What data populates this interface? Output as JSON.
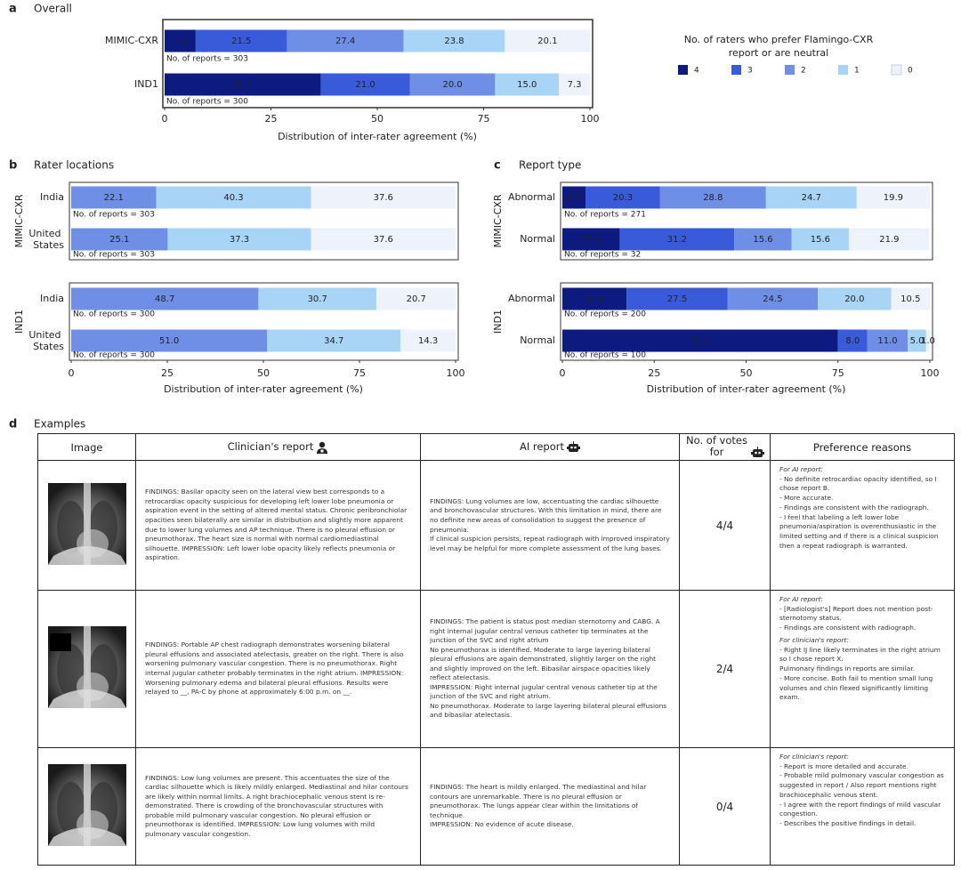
{
  "panels": [
    {
      "letter": "a",
      "title": "Overall"
    },
    {
      "letter": "b",
      "title": "Rater locations"
    },
    {
      "letter": "c",
      "title": "Report type"
    },
    {
      "letter": "d",
      "title": "Examples"
    }
  ],
  "chart_data": [
    {
      "type": "bar",
      "orientation": "horizontal",
      "stacked": true,
      "categories": [
        "MIMIC-CXR",
        "IND1"
      ],
      "notes": [
        "No. of reports = 303",
        "No. of reports = 300"
      ],
      "series": [
        {
          "name": "4",
          "color": "#0d1a80",
          "values": [
            7.3,
            36.7
          ],
          "value_labels": [
            "7.3",
            "36.7"
          ]
        },
        {
          "name": "3",
          "color": "#3a5bd9",
          "values": [
            21.5,
            21.0
          ],
          "value_labels": [
            "21.5",
            "21.0"
          ]
        },
        {
          "name": "2",
          "color": "#6f8fe6",
          "values": [
            27.4,
            20.0
          ],
          "value_labels": [
            "27.4",
            "20.0"
          ]
        },
        {
          "name": "1",
          "color": "#a8d4f5",
          "values": [
            23.8,
            15.0
          ],
          "value_labels": [
            "23.8",
            "15.0"
          ]
        },
        {
          "name": "0",
          "color": "#eef3fb",
          "values": [
            20.1,
            7.3
          ],
          "value_labels": [
            "20.1",
            "7.3"
          ]
        }
      ],
      "legend_title": [
        "No. of raters who prefer Flamingo-CXR",
        "report or are neutral"
      ],
      "legend_position": "right",
      "xlim": [
        0,
        100
      ],
      "xticks": [
        0,
        25,
        50,
        75,
        100
      ],
      "xlabel": "Distribution of inter-rater agreement (%)"
    },
    {
      "type": "bar",
      "orientation": "horizontal",
      "stacked": true,
      "group": "MIMIC-CXR",
      "categories": [
        "India",
        "United States"
      ],
      "notes": [
        "No. of reports = 303",
        "No. of reports = 303"
      ],
      "series": [
        {
          "color": "#6f8fe6",
          "values": [
            22.1,
            25.1
          ],
          "value_labels": [
            "22.1",
            "25.1"
          ]
        },
        {
          "color": "#a8d4f5",
          "values": [
            40.3,
            37.3
          ],
          "value_labels": [
            "40.3",
            "37.3"
          ]
        },
        {
          "color": "#eef3fb",
          "values": [
            37.6,
            37.6
          ],
          "value_labels": [
            "37.6",
            "37.6"
          ]
        }
      ],
      "xlim": [
        0,
        100
      ]
    },
    {
      "type": "bar",
      "orientation": "horizontal",
      "stacked": true,
      "group": "IND1",
      "categories": [
        "India",
        "United States"
      ],
      "notes": [
        "No. of reports = 300",
        "No. of reports = 300"
      ],
      "series": [
        {
          "color": "#6f8fe6",
          "values": [
            48.7,
            51.0
          ],
          "value_labels": [
            "48.7",
            "51.0"
          ]
        },
        {
          "color": "#a8d4f5",
          "values": [
            30.7,
            34.7
          ],
          "value_labels": [
            "30.7",
            "34.7"
          ]
        },
        {
          "color": "#eef3fb",
          "values": [
            20.7,
            14.3
          ],
          "value_labels": [
            "20.7",
            "14.3"
          ]
        }
      ],
      "xlim": [
        0,
        100
      ],
      "xticks": [
        0,
        25,
        50,
        75,
        100
      ],
      "xlabel": "Distribution of inter-rater agreement (%)"
    },
    {
      "type": "bar",
      "orientation": "horizontal",
      "stacked": true,
      "group": "MIMIC-CXR",
      "categories": [
        "Abnormal",
        "Normal"
      ],
      "notes": [
        "No. of reports = 271",
        "No. of reports = 32"
      ],
      "series": [
        {
          "color": "#0d1a80",
          "values": [
            6.3,
            15.6
          ],
          "value_labels": [
            "6.3",
            "15.6"
          ]
        },
        {
          "color": "#3a5bd9",
          "values": [
            20.3,
            31.2
          ],
          "value_labels": [
            "20.3",
            "31.2"
          ]
        },
        {
          "color": "#6f8fe6",
          "values": [
            28.8,
            15.6
          ],
          "value_labels": [
            "28.8",
            "15.6"
          ]
        },
        {
          "color": "#a8d4f5",
          "values": [
            24.7,
            15.6
          ],
          "value_labels": [
            "24.7",
            "15.6"
          ]
        },
        {
          "color": "#eef3fb",
          "values": [
            19.9,
            21.9
          ],
          "value_labels": [
            "19.9",
            "21.9"
          ]
        }
      ],
      "xlim": [
        0,
        100
      ]
    },
    {
      "type": "bar",
      "orientation": "horizontal",
      "stacked": true,
      "group": "IND1",
      "categories": [
        "Abnormal",
        "Normal"
      ],
      "notes": [
        "No. of reports = 200",
        "No. of reports = 100"
      ],
      "series": [
        {
          "color": "#0d1a80",
          "values": [
            17.5,
            75.0
          ],
          "value_labels": [
            "17.5",
            "75.0"
          ]
        },
        {
          "color": "#3a5bd9",
          "values": [
            27.5,
            8.0
          ],
          "value_labels": [
            "27.5",
            "8.0"
          ]
        },
        {
          "color": "#6f8fe6",
          "values": [
            24.5,
            11.0
          ],
          "value_labels": [
            "24.5",
            "11.0"
          ]
        },
        {
          "color": "#a8d4f5",
          "values": [
            20.0,
            5.0
          ],
          "value_labels": [
            "20.0",
            "5.0"
          ]
        },
        {
          "color": "#eef3fb",
          "values": [
            10.5,
            1.0
          ],
          "value_labels": [
            "10.5",
            "1.0"
          ]
        }
      ],
      "xlim": [
        0,
        100
      ],
      "xticks": [
        0,
        25,
        50,
        75,
        100
      ],
      "xlabel": "Distribution of inter-rater agreement (%)"
    }
  ],
  "examples": {
    "headers": [
      "Image",
      "Clinician's report",
      "AI report",
      "No. of votes for",
      "Preference reasons"
    ],
    "rows": [
      {
        "clinician": [
          "FINDINGS: Basilar opacity seen on the lateral view best corresponds to a retrocardiac opacity suspicious for developing left lower lobe pneumonia or aspiration event in the setting of altered mental status. Chronic peribronchiolar opacities seen bilaterally are similar in distribution and slightly more apparent due to lower lung volumes and AP technique. There is no pleural effusion or pneumothorax. The heart size is normal with normal cardiomediastinal silhouette. IMPRESSION: Left lower lobe opacity likely reflects pneumonia or aspiration."
        ],
        "ai": [
          "FINDINGS: Lung volumes are low, accentuating the cardiac silhouette and bronchovascular structures. With this limitation in mind, there are no definite new areas of consolidation to suggest the presence of pneumonia.",
          "If clinical suspicion persists, repeat radiograph with improved inspiratory level may be helpful for more complete assessment of the lung bases."
        ],
        "votes": "4/4",
        "reasons": [
          "For AI report:",
          "- No definite retrocardiac opacity identified, so I chose report B.",
          "- More accurate.",
          "- Findings are consistent with the radiograph.",
          "- I feel that labeling a left lower lobe pneumonia/aspiration is overenthusiastic in the limited setting and if there is a clinical suspicion then a repeat radiograph is warranted."
        ]
      },
      {
        "clinician": [
          "FINDINGS: Portable AP chest radiograph demonstrates worsening bilateral pleural effusions and associated atelectasis, greater on the right. There is also worsening pulmonary vascular congestion. There is no pneumothorax. Right internal jugular catheter probably terminates in the right atrium. IMPRESSION: Worsening pulmonary edema and bilateral pleural effusions. Results were relayed to __, PA-C by phone at approximately 6:00 p.m. on __."
        ],
        "ai": [
          "FINDINGS: The patient is status post median sternotomy and CABG. A right internal jugular central venous catheter tip terminates at the junction of the SVC and right atrium",
          "No pneumothorax is identified. Moderate to large layering bilateral pleural effusions are again demonstrated, slightly larger on the right and slightly improved on the left. Bibasilar airspace opacities likely reflect atelectasis.",
          "IMPRESSION: Right internal jugular central venous catheter tip at the junction of the SVC and right atrium.",
          "No pneumothorax. Moderate to large layering bilateral pleural effusions and bibasilar atelectasis."
        ],
        "votes": "2/4",
        "reasons": [
          "For AI report:",
          "- [Radiologist's] Report does not mention post-sternotomy status.",
          "- Findings are consistent with radiograph.",
          "For clinician's report:",
          "- Right IJ line likely terminates in the right atrium so I chose report X.",
          "Pulmonary findings in reports are similar.",
          "- More concise. Both fail to mention small lung volumes and chin flexed significantly limiting exam."
        ]
      },
      {
        "clinician": [
          "FINDINGS: Low lung volumes are present. This accentuates the size of the cardiac silhouette which is likely mildly enlarged. Mediastinal and hilar contours are likely within normal limits. A right brachiocephalic venous stent is re-demonstrated. There is crowding of the bronchovascular structures with probable mild pulmonary vascular congestion. No pleural effusion or pneumothorax is identified. IMPRESSION: Low lung volumes with mild pulmonary vascular congestion."
        ],
        "ai": [
          "FINDINGS: The heart is mildly enlarged. The mediastinal and hilar contours are unremarkable. There is no pleural effusion or pneumothorax. The lungs appear clear within the limitations of technique.",
          "IMPRESSION: No evidence of acute disease."
        ],
        "votes": "0/4",
        "reasons": [
          "For clinician's report:",
          "- Report is more detailed and accurate.",
          "- Probable mild pulmonary vascular congestion as suggested in report / Also report mentions right brachiocephalic venous stent.",
          "- I agree with the report findings of mild vascular congestion.",
          "- Describes the positive findings in detail."
        ]
      }
    ]
  }
}
